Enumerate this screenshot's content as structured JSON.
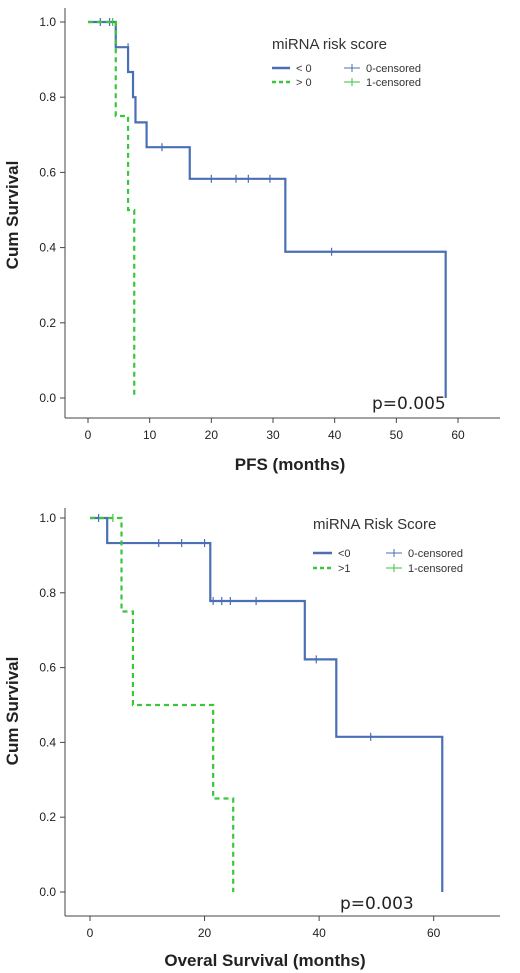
{
  "chart_data": [
    {
      "type": "line",
      "subtype": "kaplan-meier",
      "xlabel": "PFS (months)",
      "ylabel": "Cum Survival",
      "xlim": [
        -5,
        62
      ],
      "ylim": [
        0,
        1
      ],
      "xticks": [
        0,
        10,
        20,
        30,
        40,
        50,
        60
      ],
      "yticks": [
        "0.0",
        "0.2",
        "0.4",
        "0.6",
        "0.8",
        "1.0"
      ],
      "legend_title": "miRNA risk score",
      "legend_group_labels": [
        "< 0",
        "> 0"
      ],
      "legend_censored_labels": [
        "0-censored",
        "1-censored"
      ],
      "annotation": "p=0.005",
      "series": [
        {
          "name": "< 0",
          "color": "#4a6fb5",
          "style": "solid",
          "steps": [
            [
              0,
              1.0
            ],
            [
              4.5,
              0.933
            ],
            [
              6.5,
              0.867
            ],
            [
              7.3,
              0.8
            ],
            [
              7.7,
              0.733
            ],
            [
              9.5,
              0.667
            ],
            [
              16.5,
              0.583
            ],
            [
              32,
              0.389
            ],
            [
              58,
              0.0
            ]
          ],
          "censored": [
            [
              2,
              1.0
            ],
            [
              3.5,
              1.0
            ],
            [
              6.5,
              0.933
            ],
            [
              12,
              0.667
            ],
            [
              20,
              0.583
            ],
            [
              24,
              0.583
            ],
            [
              26,
              0.583
            ],
            [
              29.5,
              0.583
            ],
            [
              39.5,
              0.389
            ]
          ]
        },
        {
          "name": "> 0",
          "color": "#3ac63a",
          "style": "dashed",
          "steps": [
            [
              0,
              1.0
            ],
            [
              4.5,
              0.75
            ],
            [
              6.5,
              0.5
            ],
            [
              7.5,
              0.0
            ]
          ],
          "censored": [
            [
              4.0,
              1.0
            ]
          ]
        }
      ]
    },
    {
      "type": "line",
      "subtype": "kaplan-meier",
      "xlabel": "Overal Survival (months)",
      "ylabel": "Cum Survival",
      "xlim": [
        -5,
        75
      ],
      "ylim": [
        0,
        1
      ],
      "xticks": [
        0,
        20,
        40,
        60
      ],
      "yticks": [
        "0.0",
        "0.2",
        "0.4",
        "0.6",
        "0.8",
        "1.0"
      ],
      "legend_title": "miRNA Risk Score",
      "legend_group_labels": [
        "<0",
        ">1"
      ],
      "legend_censored_labels": [
        "0-censored",
        "1-censored"
      ],
      "annotation": "p=0.003",
      "series": [
        {
          "name": "<0",
          "color": "#4a6fb5",
          "style": "solid",
          "steps": [
            [
              0,
              1.0
            ],
            [
              3,
              0.933
            ],
            [
              21,
              0.778
            ],
            [
              37.5,
              0.622
            ],
            [
              43,
              0.415
            ],
            [
              61.5,
              0.0
            ]
          ],
          "censored": [
            [
              1.5,
              1.0
            ],
            [
              12,
              0.933
            ],
            [
              16,
              0.933
            ],
            [
              20,
              0.933
            ],
            [
              21.5,
              0.778
            ],
            [
              23,
              0.778
            ],
            [
              24.5,
              0.778
            ],
            [
              29,
              0.778
            ],
            [
              39.5,
              0.622
            ],
            [
              49,
              0.415
            ]
          ]
        },
        {
          "name": ">1",
          "color": "#3ac63a",
          "style": "dashed",
          "steps": [
            [
              0,
              1.0
            ],
            [
              5.5,
              0.75
            ],
            [
              7.5,
              0.5
            ],
            [
              21.5,
              0.25
            ],
            [
              25,
              0.0
            ]
          ],
          "censored": [
            [
              4,
              1.0
            ]
          ]
        }
      ]
    }
  ]
}
